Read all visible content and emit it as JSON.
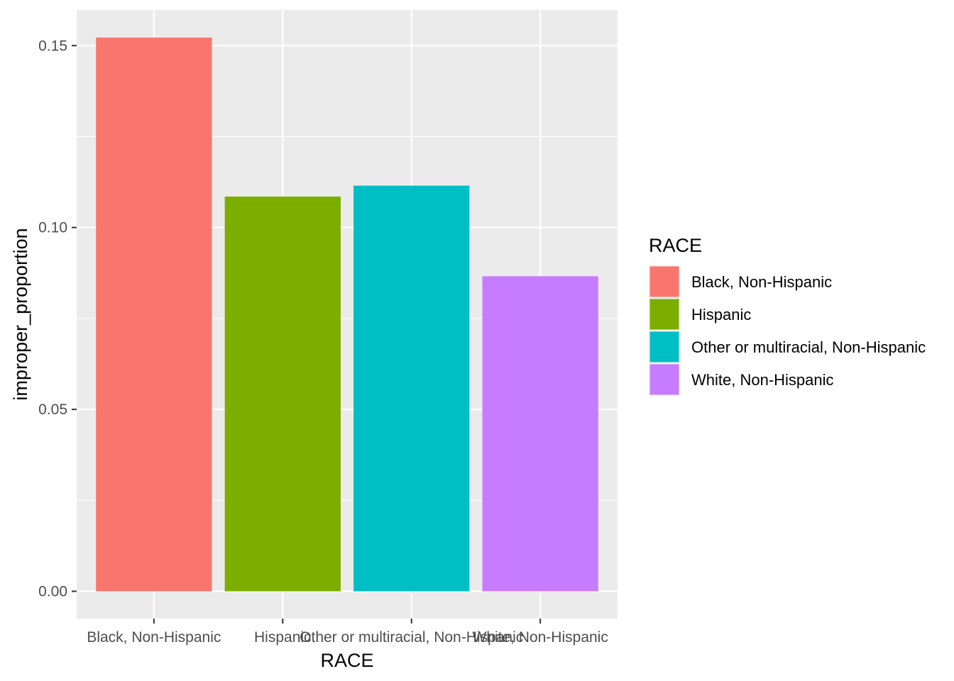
{
  "chart_data": {
    "type": "bar",
    "title": "",
    "xlabel": "RACE",
    "ylabel": "improper_proportion",
    "categories": [
      "Black, Non-Hispanic",
      "Hispanic",
      "Other or multiracial, Non-Hispanic",
      "White, Non-Hispanic"
    ],
    "values": [
      0.1522,
      0.1085,
      0.1115,
      0.0866
    ],
    "colors": [
      "#F8766D",
      "#7CAE00",
      "#00BFC4",
      "#C77CFF"
    ],
    "ylim": [
      -0.0075,
      0.1598
    ],
    "yticks": [
      0.0,
      0.05,
      0.1,
      0.15
    ],
    "ytick_labels": [
      "0.00",
      "0.05",
      "0.10",
      "0.15"
    ],
    "grid": true,
    "panel_background": "#EBEBEB",
    "grid_color": "#FFFFFF",
    "legend": {
      "title": "RACE",
      "position": "right",
      "items": [
        "Black, Non-Hispanic",
        "Hispanic",
        "Other or multiracial, Non-Hispanic",
        "White, Non-Hispanic"
      ]
    }
  }
}
